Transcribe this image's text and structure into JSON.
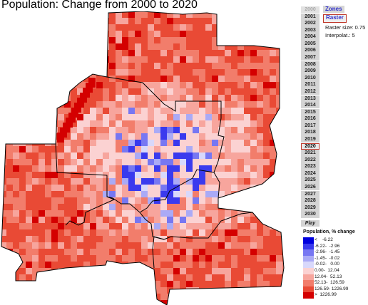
{
  "title": "Population: Change from 2000 to 2020",
  "years": [
    "2000",
    "2001",
    "2002",
    "2003",
    "2004",
    "2005",
    "2006",
    "2007",
    "2008",
    "2009",
    "2010",
    "2011",
    "2012",
    "2013",
    "2014",
    "2015",
    "2016",
    "2017",
    "2018",
    "2019",
    "2020",
    "2021",
    "2022",
    "2023",
    "2024",
    "2025",
    "2026",
    "2027",
    "2028",
    "2029",
    "2030"
  ],
  "selected_year": "2020",
  "play_label": "Play",
  "tabs": {
    "zones": "Zones",
    "raster": "Raster"
  },
  "raster_size_label": "Raster size:  0.75",
  "interpolation_label": "Interpolat.:  5",
  "legend": {
    "title": "Population, % change",
    "items": [
      {
        "label": "<    -6.22",
        "color": "#0000dd"
      },
      {
        "label": "-6.22-  -2.96",
        "color": "#3a3aee"
      },
      {
        "label": "-2.96-  -1.45",
        "color": "#7777f2"
      },
      {
        "label": "-1.45-  -0.02",
        "color": "#aaaaf6"
      },
      {
        "label": "-0.02-   0.00",
        "color": "#d8d8fb"
      },
      {
        "label": "0.00-  12.04",
        "color": "#fbd2d2"
      },
      {
        "label": "12.04-  52.13",
        "color": "#f7a59d"
      },
      {
        "label": "52.13-  126.59",
        "color": "#f27d6b"
      },
      {
        "label": "126.59- 1226.99",
        "color": "#e94a35"
      },
      {
        "label": ">  1226.99",
        "color": "#d40000"
      }
    ]
  }
}
